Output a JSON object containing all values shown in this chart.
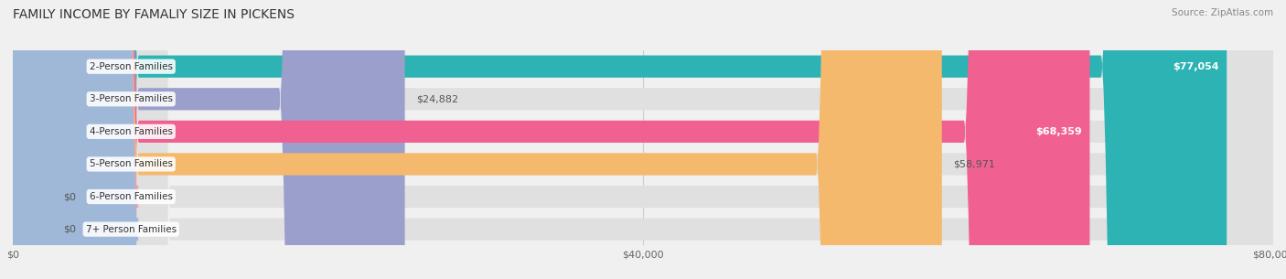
{
  "title": "FAMILY INCOME BY FAMALIY SIZE IN PICKENS",
  "source": "Source: ZipAtlas.com",
  "categories": [
    "2-Person Families",
    "3-Person Families",
    "4-Person Families",
    "5-Person Families",
    "6-Person Families",
    "7+ Person Families"
  ],
  "values": [
    77054,
    24882,
    68359,
    58971,
    0,
    0
  ],
  "bar_colors": [
    "#2db3b3",
    "#9b9fcc",
    "#f06090",
    "#f5b96e",
    "#f0a0a8",
    "#a0b8d8"
  ],
  "value_labels": [
    "$77,054",
    "$24,882",
    "$68,359",
    "$58,971",
    "$0",
    "$0"
  ],
  "background_color": "#f0f0f0",
  "xlim": [
    0,
    80000
  ],
  "xticks": [
    0,
    40000,
    80000
  ],
  "xticklabels": [
    "$0",
    "$40,000",
    "$80,000"
  ],
  "figsize": [
    14.06,
    3.05
  ],
  "dpi": 100
}
